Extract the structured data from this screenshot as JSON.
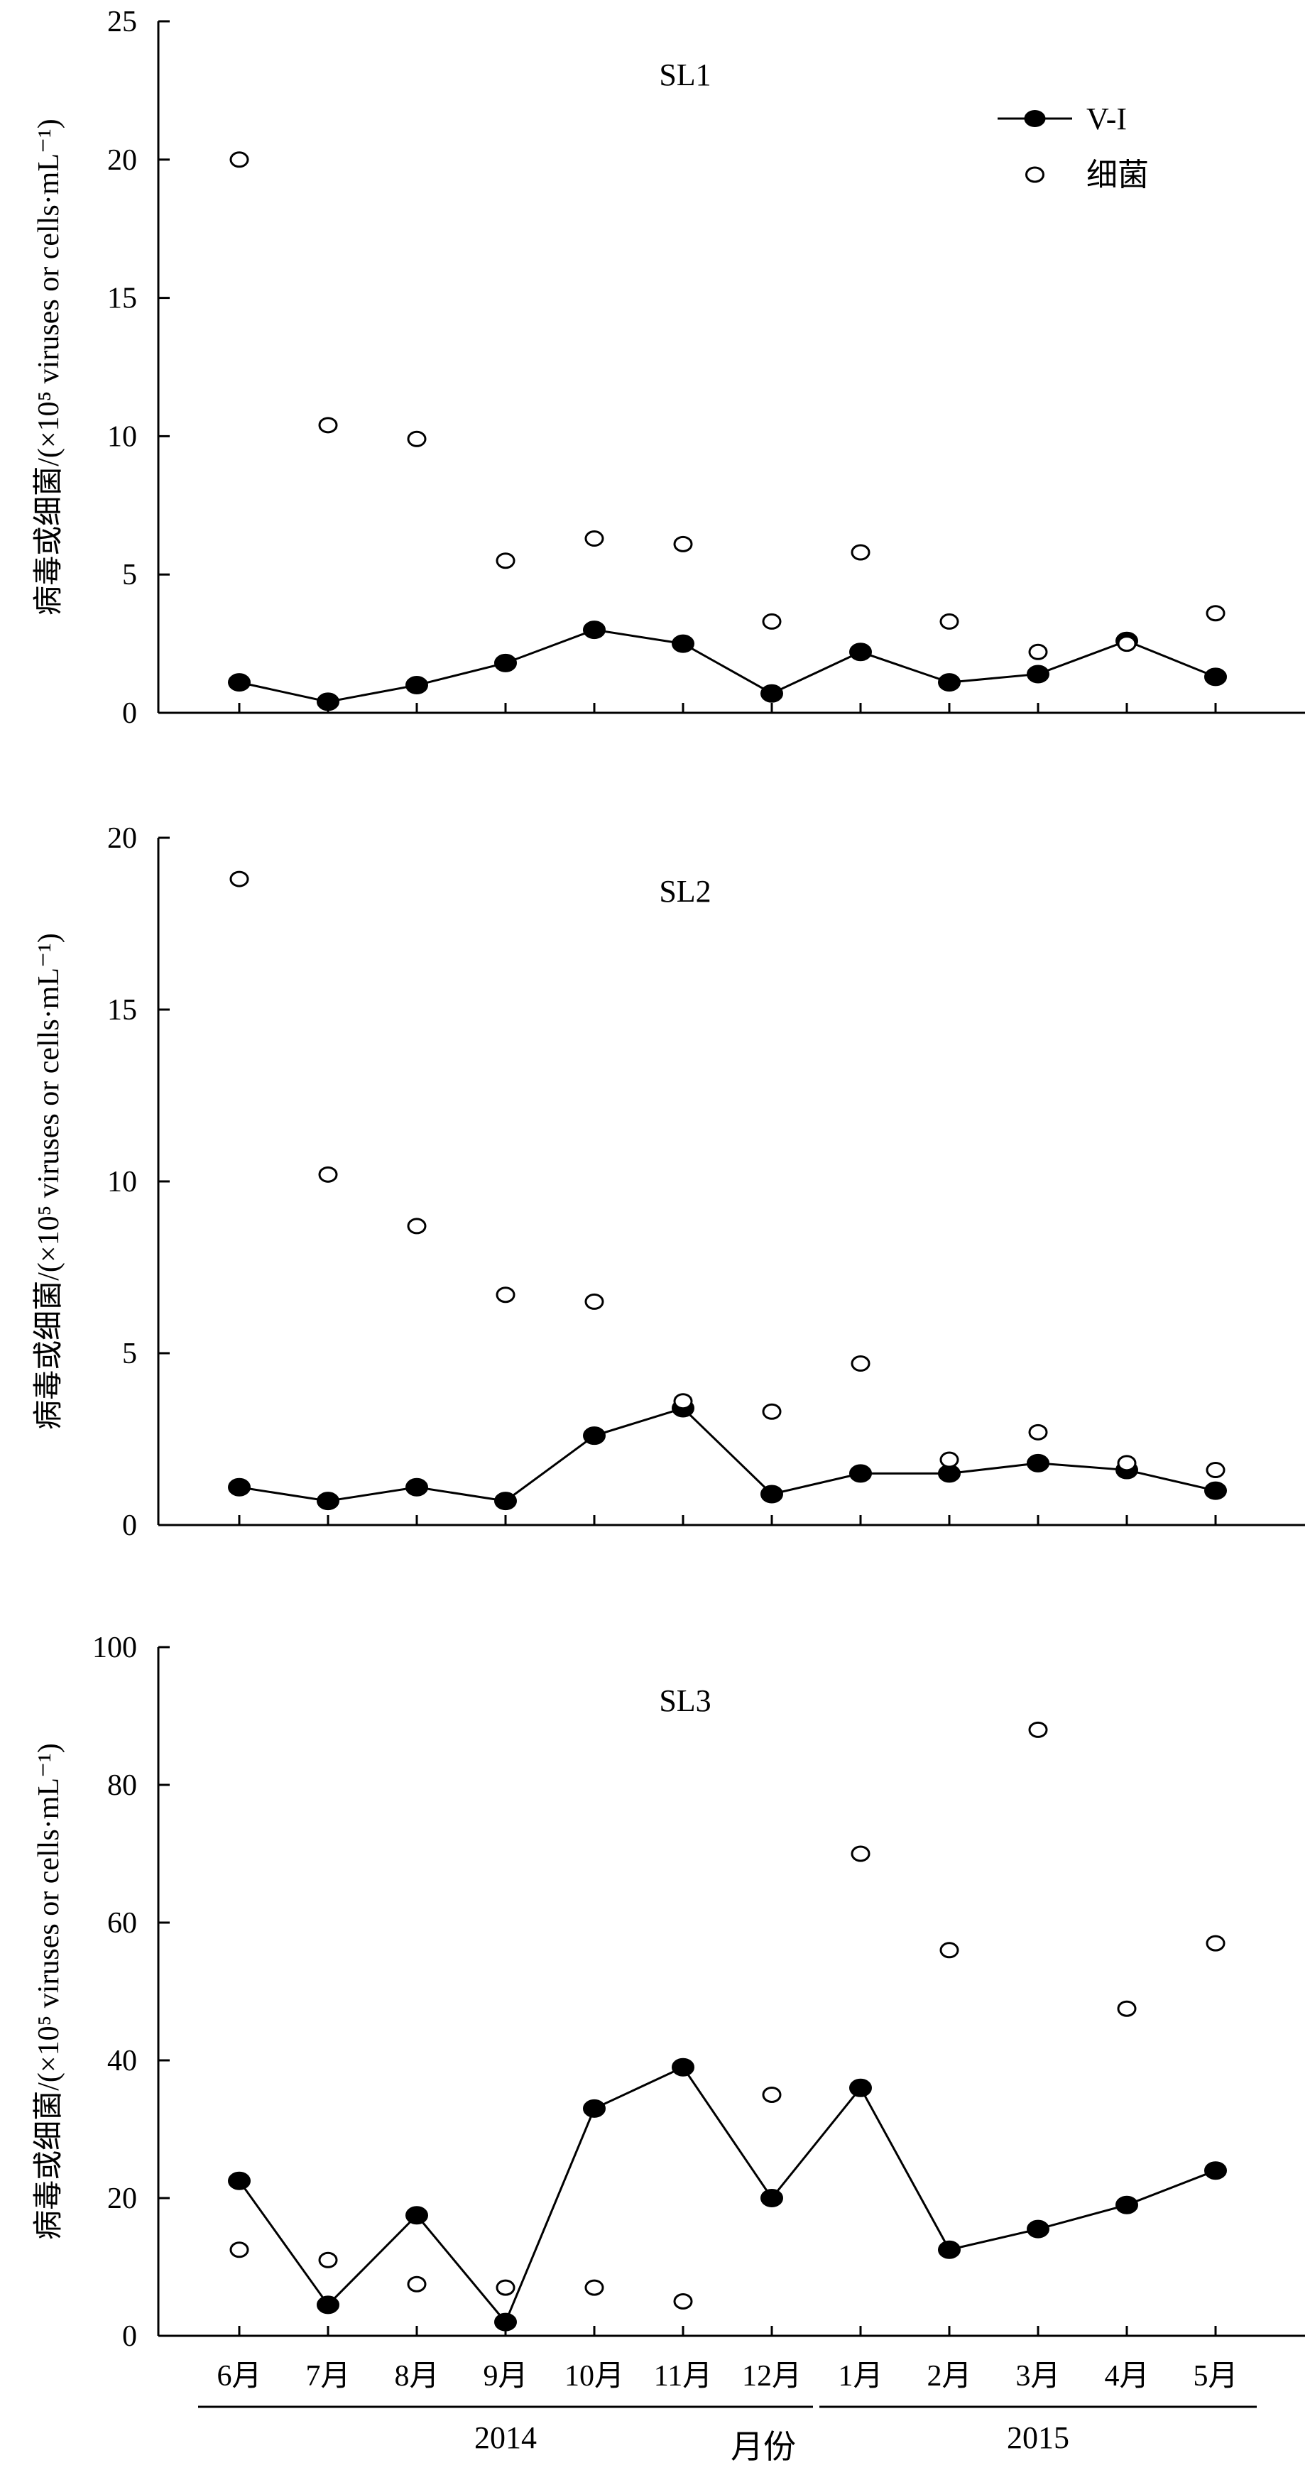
{
  "chart_data": {
    "type": "line",
    "ylabel": "病毒或细菌/(×10⁵ viruses or cells·mL⁻¹)",
    "xlabel": "月份",
    "categories": [
      "6月",
      "7月",
      "8月",
      "9月",
      "10月",
      "11月",
      "12月",
      "1月",
      "2月",
      "3月",
      "4月",
      "5月"
    ],
    "year_groups": [
      {
        "label": "2014",
        "from": 0,
        "to": 6
      },
      {
        "label": "2015",
        "from": 7,
        "to": 11
      }
    ],
    "legend": {
      "position": "top-right",
      "entries": [
        "V-I",
        "细菌"
      ]
    },
    "series_names": [
      "V-I",
      "细菌"
    ],
    "panels": [
      {
        "title": "SL1",
        "ylim": [
          0,
          25
        ],
        "yticks": [
          0,
          5,
          10,
          15,
          20,
          25
        ],
        "series": [
          {
            "name": "V-I",
            "style": "line-filled-marker",
            "values": [
              1.1,
              0.4,
              1.0,
              1.8,
              3.0,
              2.5,
              0.7,
              2.2,
              1.1,
              1.4,
              2.6,
              1.3
            ]
          },
          {
            "name": "细菌",
            "style": "open-marker",
            "values": [
              20.0,
              10.4,
              9.9,
              5.5,
              6.3,
              6.1,
              3.3,
              5.8,
              3.3,
              2.2,
              2.5,
              3.6
            ]
          }
        ]
      },
      {
        "title": "SL2",
        "ylim": [
          0,
          20
        ],
        "yticks": [
          0,
          5,
          10,
          15,
          20
        ],
        "series": [
          {
            "name": "V-I",
            "style": "line-filled-marker",
            "values": [
              1.1,
              0.7,
              1.1,
              0.7,
              2.6,
              3.4,
              0.9,
              1.5,
              1.5,
              1.8,
              1.6,
              1.0
            ]
          },
          {
            "name": "细菌",
            "style": "open-marker",
            "values": [
              18.8,
              10.2,
              8.7,
              6.7,
              6.5,
              3.6,
              3.3,
              4.7,
              1.9,
              2.7,
              1.8,
              1.6
            ]
          }
        ]
      },
      {
        "title": "SL3",
        "ylim": [
          0,
          100
        ],
        "yticks": [
          0,
          20,
          40,
          60,
          80,
          100
        ],
        "series": [
          {
            "name": "V-I",
            "style": "line-filled-marker",
            "values": [
              22.5,
              4.5,
              17.5,
              2.0,
              33.0,
              39.0,
              20.0,
              36.0,
              12.5,
              15.5,
              19.0,
              24.0
            ]
          },
          {
            "name": "细菌",
            "style": "open-marker",
            "values": [
              12.5,
              11.0,
              7.5,
              7.0,
              7.0,
              5.0,
              35.0,
              70.0,
              56.0,
              88.0,
              47.5,
              57.0
            ]
          }
        ]
      }
    ]
  }
}
